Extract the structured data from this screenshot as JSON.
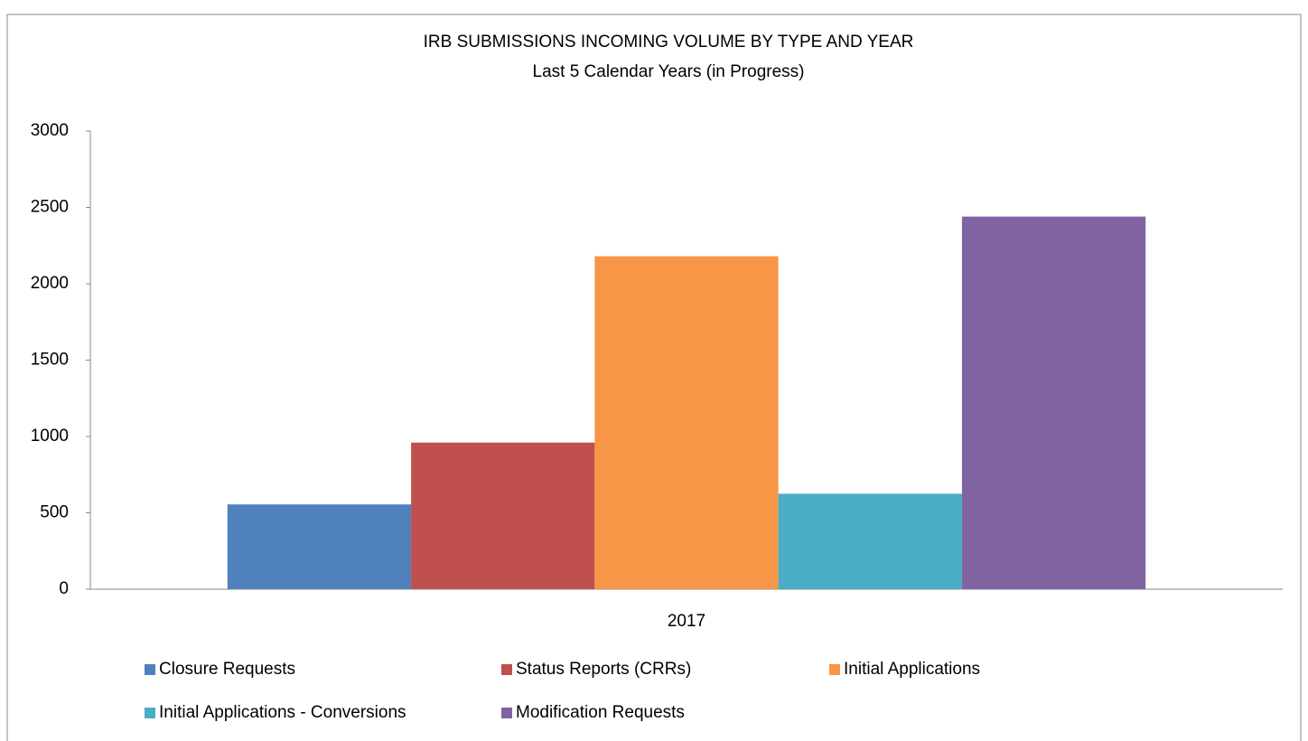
{
  "chart_data": {
    "type": "bar",
    "title": "IRB SUBMISSIONS INCOMING VOLUME BY TYPE AND YEAR",
    "subtitle": "Last 5 Calendar Years (in Progress)",
    "categories": [
      "2017"
    ],
    "series": [
      {
        "name": "Closure Requests",
        "color": "#4f81bd",
        "values": [
          555
        ]
      },
      {
        "name": "Status Reports (CRRs)",
        "color": "#c0504d",
        "values": [
          960
        ]
      },
      {
        "name": "Initial Applications",
        "color": "#f79646",
        "values": [
          2180
        ]
      },
      {
        "name": "Initial Applications - Conversions",
        "color": "#4bacc6",
        "values": [
          625
        ]
      },
      {
        "name": "Modification Requests",
        "color": "#8064a2",
        "values": [
          2440
        ]
      }
    ],
    "ylim": [
      0,
      3000
    ],
    "yticks": [
      0,
      500,
      1000,
      1500,
      2000,
      2500,
      3000
    ],
    "grid": false,
    "legend": "bottom"
  }
}
